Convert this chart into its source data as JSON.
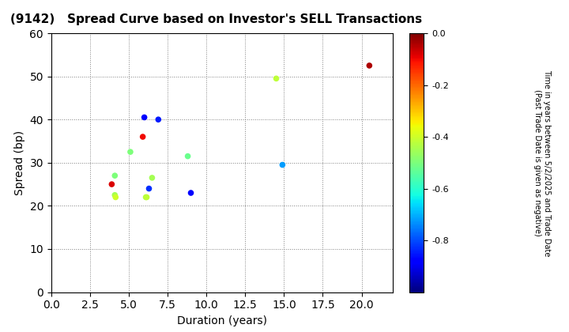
{
  "title": "(9142)   Spread Curve based on Investor's SELL Transactions",
  "xlabel": "Duration (years)",
  "ylabel": "Spread (bp)",
  "colorbar_label_line1": "Time in years between 5/2/2025 and Trade Date",
  "colorbar_label_line2": "(Past Trade Date is given as negative)",
  "xlim": [
    0.0,
    22.0
  ],
  "ylim": [
    0,
    60
  ],
  "xticks": [
    0.0,
    2.5,
    5.0,
    7.5,
    10.0,
    12.5,
    15.0,
    17.5,
    20.0
  ],
  "yticks": [
    0,
    10,
    20,
    30,
    40,
    50,
    60
  ],
  "cmap": "jet",
  "clim": [
    -1.0,
    0.0
  ],
  "points": [
    {
      "duration": 3.9,
      "spread": 25.0,
      "time": -0.08
    },
    {
      "duration": 4.1,
      "spread": 27.0,
      "time": -0.5
    },
    {
      "duration": 4.1,
      "spread": 22.5,
      "time": -0.45
    },
    {
      "duration": 4.15,
      "spread": 22.0,
      "time": -0.4
    },
    {
      "duration": 5.1,
      "spread": 32.5,
      "time": -0.5
    },
    {
      "duration": 5.9,
      "spread": 36.0,
      "time": -0.1
    },
    {
      "duration": 6.0,
      "spread": 40.5,
      "time": -0.88
    },
    {
      "duration": 6.1,
      "spread": 22.0,
      "time": -0.43
    },
    {
      "duration": 6.15,
      "spread": 22.0,
      "time": -0.42
    },
    {
      "duration": 6.3,
      "spread": 24.0,
      "time": -0.83
    },
    {
      "duration": 6.5,
      "spread": 26.5,
      "time": -0.45
    },
    {
      "duration": 6.9,
      "spread": 40.0,
      "time": -0.85
    },
    {
      "duration": 8.8,
      "spread": 31.5,
      "time": -0.52
    },
    {
      "duration": 9.0,
      "spread": 23.0,
      "time": -0.88
    },
    {
      "duration": 14.5,
      "spread": 49.5,
      "time": -0.42
    },
    {
      "duration": 14.9,
      "spread": 29.5,
      "time": -0.72
    },
    {
      "duration": 20.5,
      "spread": 52.5,
      "time": -0.04
    }
  ],
  "bg_color": "#f0f0f0",
  "marker_size": 30,
  "title_fontsize": 11,
  "axis_fontsize": 10,
  "cbar_tick_fontsize": 8,
  "cbar_label_fontsize": 7
}
